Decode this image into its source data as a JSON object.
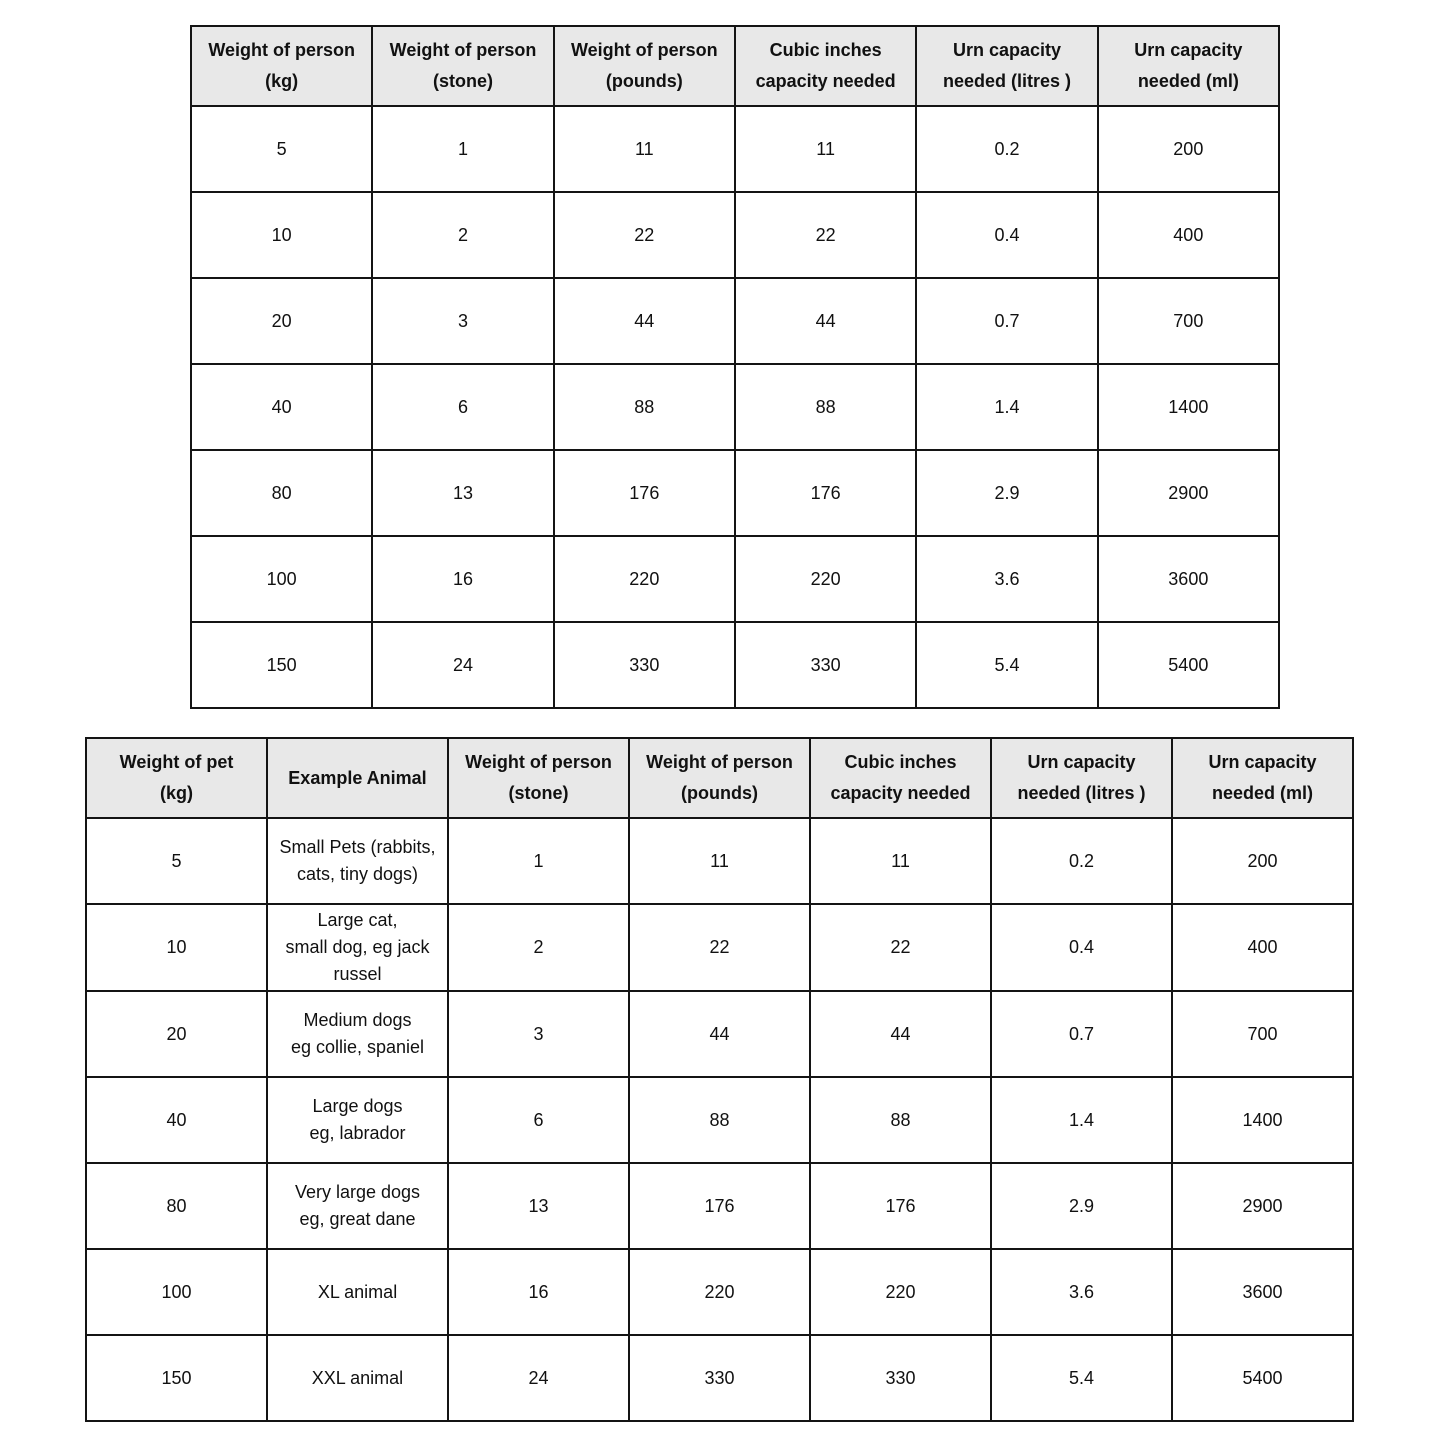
{
  "colors": {
    "page_bg": "#ffffff",
    "header_bg": "#e8e8e8",
    "border": "#141414",
    "text": "#111111",
    "cell_bg": "#ffffff"
  },
  "tables": [
    {
      "name": "person-urn-capacity-table",
      "headers": [
        "Weight of person\n(kg)",
        "Weight of person\n(stone)",
        "Weight of person\n(pounds)",
        "Cubic inches\ncapacity needed",
        "Urn capacity\nneeded (litres )",
        "Urn capacity\nneeded (ml)"
      ],
      "rows": [
        [
          "5",
          "1",
          "11",
          "11",
          "0.2",
          "200"
        ],
        [
          "10",
          "2",
          "22",
          "22",
          "0.4",
          "400"
        ],
        [
          "20",
          "3",
          "44",
          "44",
          "0.7",
          "700"
        ],
        [
          "40",
          "6",
          "88",
          "88",
          "1.4",
          "1400"
        ],
        [
          "80",
          "13",
          "176",
          "176",
          "2.9",
          "2900"
        ],
        [
          "100",
          "16",
          "220",
          "220",
          "3.6",
          "3600"
        ],
        [
          "150",
          "24",
          "330",
          "330",
          "5.4",
          "5400"
        ]
      ]
    },
    {
      "name": "pet-urn-capacity-table",
      "headers": [
        "Weight of pet\n(kg)",
        "Example Animal",
        "Weight of person\n(stone)",
        "Weight of person\n(pounds)",
        "Cubic inches\ncapacity needed",
        "Urn capacity\nneeded (litres )",
        "Urn capacity\nneeded (ml)"
      ],
      "rows": [
        [
          "5",
          "Small Pets (rabbits,\ncats, tiny dogs)",
          "1",
          "11",
          "11",
          "0.2",
          "200"
        ],
        [
          "10",
          "Large cat,\nsmall dog, eg jack\nrussel",
          "2",
          "22",
          "22",
          "0.4",
          "400"
        ],
        [
          "20",
          "Medium dogs\neg collie, spaniel",
          "3",
          "44",
          "44",
          "0.7",
          "700"
        ],
        [
          "40",
          "Large dogs\neg, labrador",
          "6",
          "88",
          "88",
          "1.4",
          "1400"
        ],
        [
          "80",
          "Very large dogs\neg, great dane",
          "13",
          "176",
          "176",
          "2.9",
          "2900"
        ],
        [
          "100",
          "XL animal",
          "16",
          "220",
          "220",
          "3.6",
          "3600"
        ],
        [
          "150",
          "XXL animal",
          "24",
          "330",
          "330",
          "5.4",
          "5400"
        ]
      ]
    }
  ]
}
